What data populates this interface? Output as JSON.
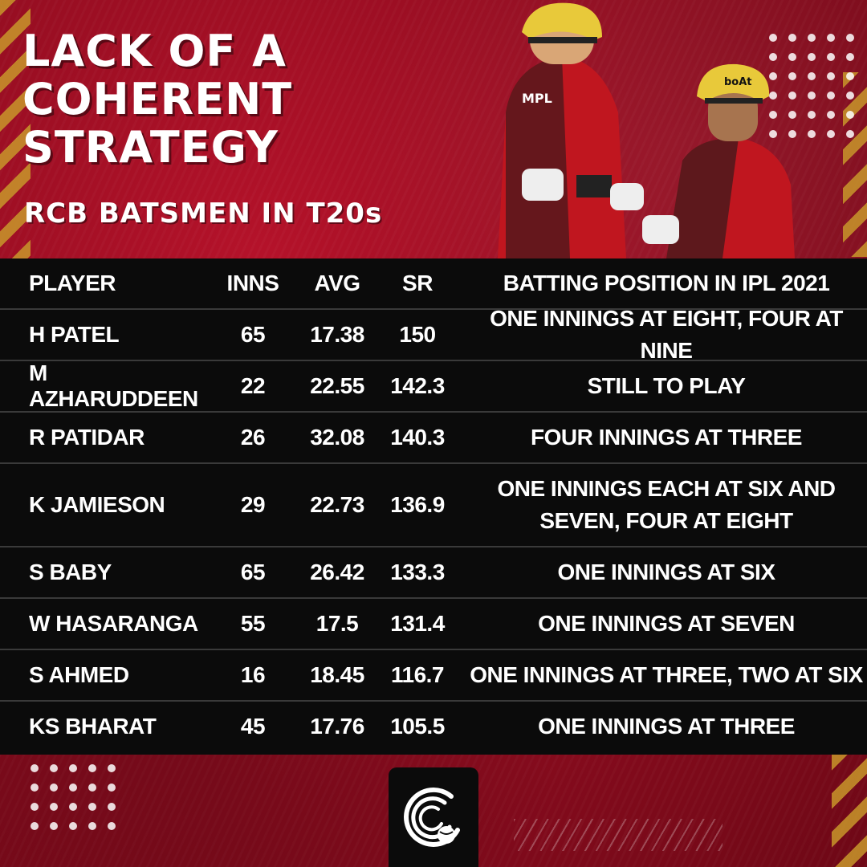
{
  "header": {
    "title_lines": [
      "LACK OF A",
      "COHERENT",
      "STRATEGY"
    ],
    "subtitle": "RCB BATSMEN IN T20s"
  },
  "table": {
    "columns": [
      "PLAYER",
      "INNS",
      "AVG",
      "SR",
      "BATTING POSITION IN IPL 2021"
    ],
    "rows": [
      {
        "player": "H PATEL",
        "inns": "65",
        "avg": "17.38",
        "sr": "150",
        "position": [
          "ONE INNINGS AT EIGHT, FOUR AT NINE"
        ]
      },
      {
        "player": "M AZHARUDDEEN",
        "inns": "22",
        "avg": "22.55",
        "sr": "142.3",
        "position": [
          "STILL TO PLAY"
        ]
      },
      {
        "player": "R PATIDAR",
        "inns": "26",
        "avg": "32.08",
        "sr": "140.3",
        "position": [
          "FOUR INNINGS AT THREE"
        ]
      },
      {
        "player": "K JAMIESON",
        "inns": "29",
        "avg": "22.73",
        "sr": "136.9",
        "position": [
          "ONE INNINGS EACH AT SIX AND",
          "SEVEN, FOUR AT EIGHT"
        ]
      },
      {
        "player": "S BABY",
        "inns": "65",
        "avg": "26.42",
        "sr": "133.3",
        "position": [
          "ONE INNINGS AT SIX"
        ]
      },
      {
        "player": "W HASARANGA",
        "inns": "55",
        "avg": "17.5",
        "sr": "131.4",
        "position": [
          "ONE INNINGS AT SEVEN"
        ]
      },
      {
        "player": "S AHMED",
        "inns": "16",
        "avg": "18.45",
        "sr": "116.7",
        "position": [
          "ONE INNINGS AT THREE, TWO AT SIX"
        ]
      },
      {
        "player": "KS BHARAT",
        "inns": "45",
        "avg": "17.76",
        "sr": "105.5",
        "position": [
          "ONE INNINGS AT THREE"
        ]
      }
    ]
  },
  "players_photo": {
    "helmet_logo_text": "boAt",
    "jersey_text": "MPL"
  },
  "colors": {
    "background_red": "#8d0c1f",
    "accent_gold": "#c8962a",
    "table_black": "#0b0b0b",
    "helmet_yellow": "#e8c93a"
  },
  "icons": {
    "brand_logo": "cricket-ball-logo-icon"
  }
}
